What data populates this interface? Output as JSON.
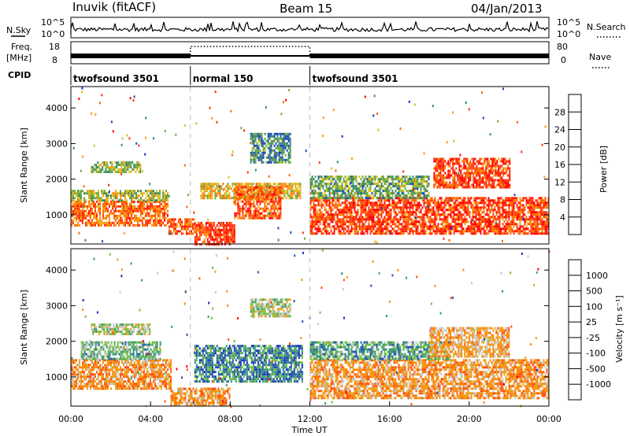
{
  "header": {
    "station": "Inuvik (fitACF)",
    "beam": "Beam 15",
    "date": "04/Jan/2013"
  },
  "top_panels": {
    "nsky_label": "N.Sky",
    "nsky_scale": [
      "10^5",
      "10^0"
    ],
    "nsearch_label": "N.Search",
    "nsearch_scale": [
      "10^5",
      "10^0"
    ],
    "freq_label": "Freq.",
    "freq_unit": "[MHz]",
    "freq_scale": [
      "18",
      "8"
    ],
    "nave_label": "Nave",
    "nave_scale": [
      "80",
      "0"
    ],
    "cpid_label": "CPID",
    "cpid_segments": [
      {
        "label": "twofsound 3501",
        "start_h": 0,
        "end_h": 6
      },
      {
        "label": "normal 150",
        "start_h": 6,
        "end_h": 12
      },
      {
        "label": "twofsound 3501",
        "start_h": 12,
        "end_h": 24
      }
    ]
  },
  "colors": {
    "power_scale": [
      "#1030e0",
      "#2050b0",
      "#3a8a70",
      "#6aaa40",
      "#d8c020",
      "#ff9a10",
      "#ff6a00",
      "#ff3010",
      "#ff0000"
    ],
    "velocity_scale": [
      "#1030c0",
      "#2a5aa8",
      "#3a9a78",
      "#70c040",
      "#c8c8c8",
      "#e8a020",
      "#ff8a00",
      "#ff5010",
      "#ff0000"
    ],
    "power_mid": "#ff4010",
    "power_green": "#4a9a5a",
    "vel_green": "#3e8a6a",
    "vel_grey": "#c8c8c8",
    "vel_orange": "#ff9a10"
  },
  "chart_data": [
    {
      "type": "heatmap",
      "name": "power",
      "ylabel": "Slant Range [km]",
      "y_ticks": [
        1000,
        2000,
        3000,
        4000
      ],
      "ylim": [
        180,
        4600
      ],
      "xlim_hours": [
        0,
        24
      ],
      "colorbar_label": "Power [dB]",
      "colorbar_ticks": [
        4,
        8,
        12,
        16,
        20,
        24,
        28
      ],
      "colorbar_range": [
        0,
        32
      ],
      "blocks": [
        {
          "t0": 0,
          "t1": 4.9,
          "r0": 700,
          "r1": 1400,
          "level": 0.75
        },
        {
          "t0": 0,
          "t1": 4.9,
          "r0": 1400,
          "r1": 1700,
          "level": 0.45
        },
        {
          "t0": 4.9,
          "t1": 6.2,
          "r0": 500,
          "r1": 900,
          "level": 0.8
        },
        {
          "t0": 6.2,
          "t1": 8.2,
          "r0": 200,
          "r1": 800,
          "level": 0.85
        },
        {
          "t0": 6.5,
          "t1": 11.5,
          "r0": 1500,
          "r1": 1900,
          "level": 0.55
        },
        {
          "t0": 8.2,
          "t1": 10.5,
          "r0": 900,
          "r1": 1800,
          "level": 0.8
        },
        {
          "t0": 9,
          "t1": 11,
          "r0": 2500,
          "r1": 3300,
          "level": 0.25
        },
        {
          "t0": 12,
          "t1": 24,
          "r0": 500,
          "r1": 1500,
          "level": 0.85
        },
        {
          "t0": 12,
          "t1": 18,
          "r0": 1500,
          "r1": 2100,
          "level": 0.35
        },
        {
          "t0": 18.2,
          "t1": 22,
          "r0": 1800,
          "r1": 2600,
          "level": 0.85
        },
        {
          "t0": 1,
          "t1": 3.5,
          "r0": 2200,
          "r1": 2500,
          "level": 0.4
        }
      ]
    },
    {
      "type": "heatmap",
      "name": "velocity",
      "ylabel": "Slant Range [km]",
      "y_ticks": [
        1000,
        2000,
        3000,
        4000
      ],
      "ylim": [
        180,
        4600
      ],
      "xlim_hours": [
        0,
        24
      ],
      "x_ticks": [
        "00:00",
        "04:00",
        "08:00",
        "12:00",
        "16:00",
        "20:00",
        "00:00"
      ],
      "xlabel": "Time UT",
      "colorbar_label": "Velocity [m s⁻¹]",
      "colorbar_ticks": [
        1000,
        500,
        100,
        25,
        -25,
        -100,
        -500,
        -1000
      ],
      "blocks": [
        {
          "t0": 0,
          "t1": 5,
          "r0": 700,
          "r1": 1500,
          "level": 0.7
        },
        {
          "t0": 0.5,
          "t1": 4.5,
          "r0": 1500,
          "r1": 2000,
          "level": 0.35
        },
        {
          "t0": 1,
          "t1": 4,
          "r0": 2200,
          "r1": 2500,
          "level": 0.45
        },
        {
          "t0": 5,
          "t1": 8,
          "r0": 200,
          "r1": 700,
          "level": 0.7
        },
        {
          "t0": 6.2,
          "t1": 11.6,
          "r0": 900,
          "r1": 1900,
          "level": 0.2
        },
        {
          "t0": 9,
          "t1": 11,
          "r0": 2700,
          "r1": 3200,
          "level": 0.45
        },
        {
          "t0": 12,
          "t1": 24,
          "r0": 400,
          "r1": 1500,
          "level": 0.7
        },
        {
          "t0": 12,
          "t1": 19,
          "r0": 1500,
          "r1": 2000,
          "level": 0.3
        },
        {
          "t0": 18,
          "t1": 22,
          "r0": 1600,
          "r1": 2400,
          "level": 0.65
        }
      ]
    }
  ]
}
